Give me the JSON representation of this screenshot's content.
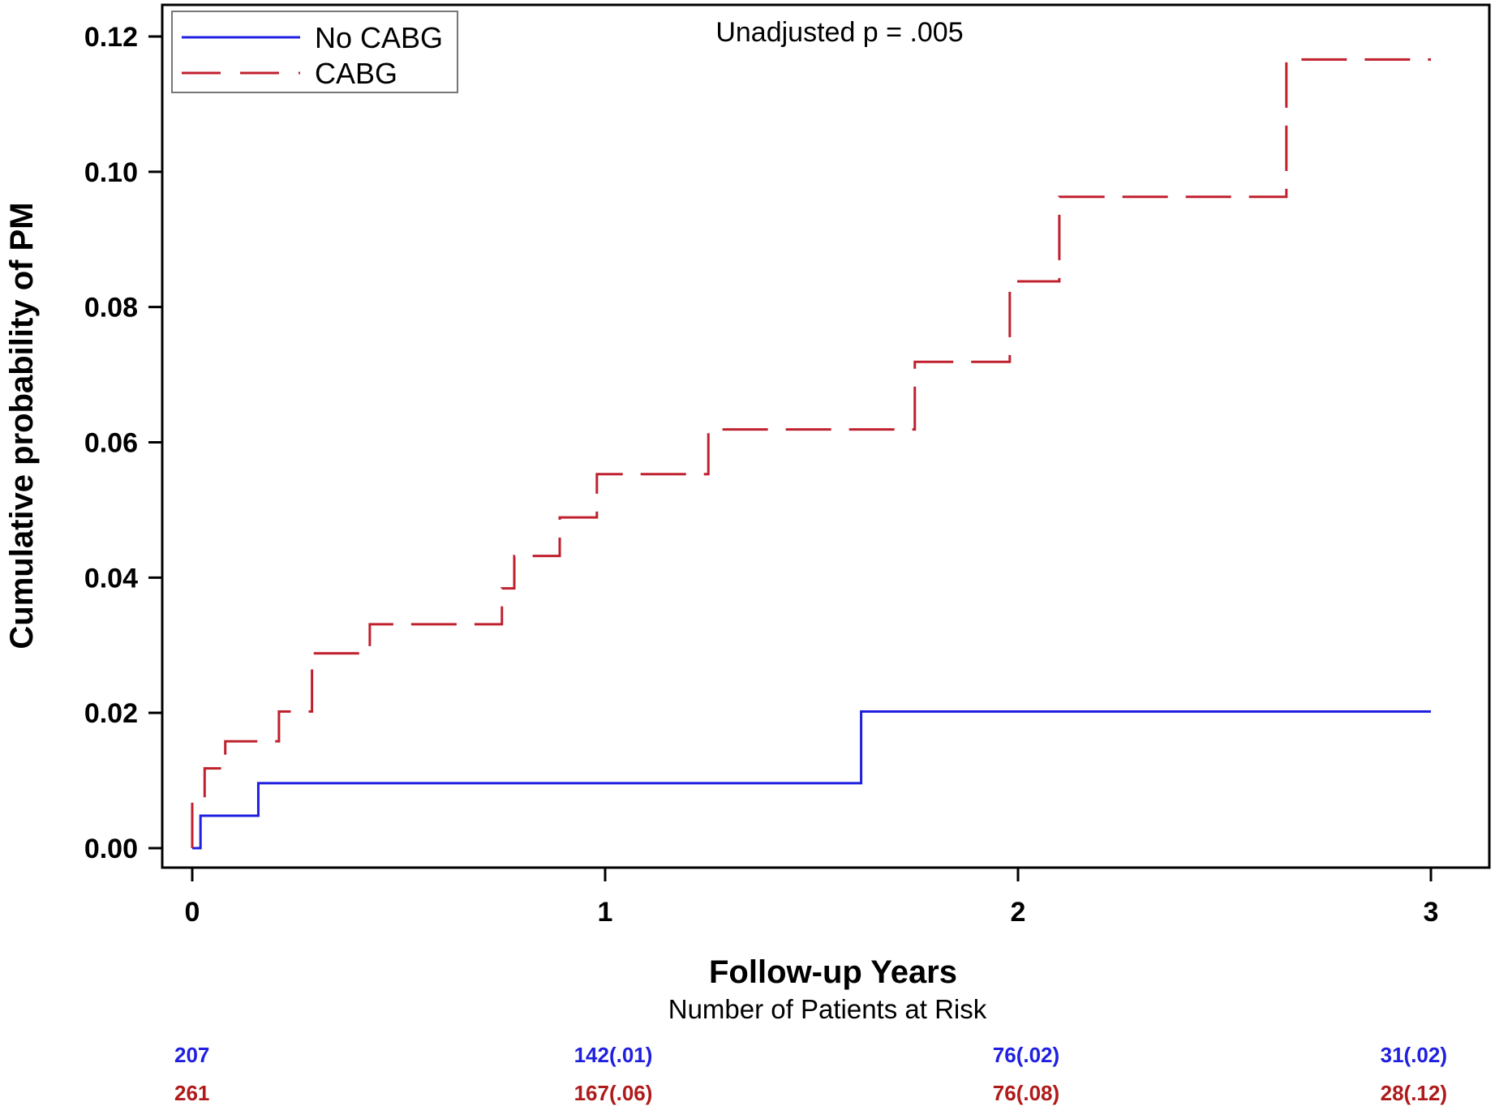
{
  "chart_data": {
    "type": "line",
    "step": true,
    "title": "",
    "xlabel": "Follow-up Years",
    "ylabel": "Cumulative probability of PM",
    "annotation": "Unadjusted  p = .005",
    "xlim": [
      0,
      3
    ],
    "ylim": [
      0,
      0.12
    ],
    "x_ticks": [
      0,
      1,
      2,
      3
    ],
    "x_tick_labels": [
      "0",
      "1",
      "2",
      "3"
    ],
    "y_ticks": [
      0,
      0.02,
      0.04,
      0.06,
      0.08,
      0.1,
      0.12
    ],
    "y_tick_labels": [
      "0.00",
      "0.02",
      "0.04",
      "0.06",
      "0.08",
      "0.10",
      "0.12"
    ],
    "grid": false,
    "legend_position": "top-left",
    "series": [
      {
        "name": "No CABG",
        "color": "#1f1fe0",
        "dash": "solid",
        "x": [
          0,
          0.02,
          0.16,
          1.62,
          3.0
        ],
        "y": [
          0,
          0.0048,
          0.0096,
          0.0202,
          0.0202
        ]
      },
      {
        "name": "CABG",
        "color": "#c0202e",
        "dash": "dashed",
        "x": [
          0,
          0.0,
          0.03,
          0.08,
          0.21,
          0.29,
          0.43,
          0.75,
          0.78,
          0.89,
          0.98,
          1.25,
          1.75,
          1.98,
          2.1,
          2.65,
          3.0
        ],
        "y": [
          0,
          0.0075,
          0.0118,
          0.0158,
          0.0202,
          0.0288,
          0.0331,
          0.0384,
          0.0432,
          0.0489,
          0.0553,
          0.0619,
          0.0719,
          0.0838,
          0.0963,
          0.1166,
          0.1166
        ]
      }
    ],
    "risk_table": {
      "title": "Number of Patients at Risk",
      "columns_x": [
        0,
        1,
        2,
        3
      ],
      "rows": [
        {
          "group": "No CABG",
          "color": "#1f1fe0",
          "values": [
            "207",
            "142(.01)",
            "76(.02)",
            "31(.02)"
          ]
        },
        {
          "group": "CABG",
          "color": "#b01a1a",
          "values": [
            "261",
            "167(.06)",
            "76(.08)",
            "28(.12)"
          ]
        }
      ]
    }
  }
}
